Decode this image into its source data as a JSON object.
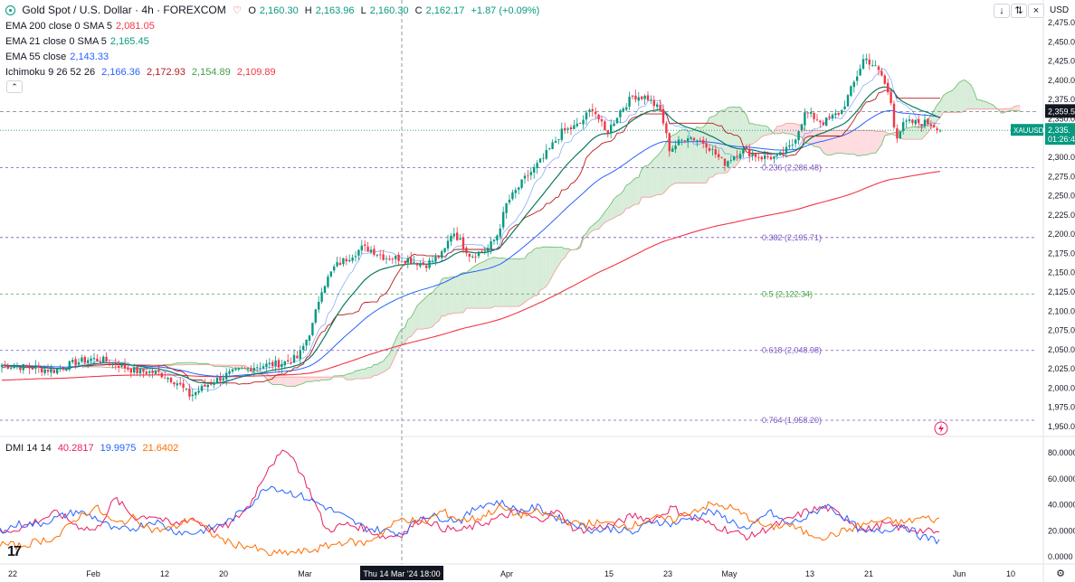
{
  "header": {
    "symbol": "Gold Spot / U.S. Dollar · 4h · FOREXCOM",
    "open_label": "O",
    "open": "2,160.30",
    "high_label": "H",
    "high": "2,163.96",
    "low_label": "L",
    "low": "2,160.30",
    "close_label": "C",
    "close": "2,162.17",
    "change": "+1.87 (+0.09%)",
    "currency": "USD"
  },
  "indicators": [
    {
      "label": "EMA 200 close 0 SMA 5",
      "value": "2,081.05",
      "color": "#f23645"
    },
    {
      "label": "EMA 21 close 0 SMA 5",
      "value": "2,165.45",
      "color": "#089981"
    },
    {
      "label": "EMA 55 close",
      "value": "2,143.33",
      "color": "#2962ff"
    },
    {
      "label": "Ichimoku 9 26 52 26",
      "values": [
        "2,166.36",
        "2,172.93",
        "2,154.89",
        "2,109.89"
      ],
      "colors": [
        "#2962ff",
        "#b71c1c",
        "#43a047",
        "#f23645"
      ]
    }
  ],
  "dmi": {
    "label": "DMI 14 14",
    "values": [
      "40.2817",
      "19.9975",
      "21.6402"
    ],
    "colors": [
      "#e91e63",
      "#2962ff",
      "#ff6d00"
    ]
  },
  "price_badges": {
    "resistance": "2,359.5",
    "last": "2,335.",
    "countdown": "01:26:4",
    "ticker": "XAUUSD"
  },
  "crosshair_label": "Thu 14 Mar '24   18:00",
  "colors": {
    "up": "#089981",
    "down": "#f23645",
    "ema200": "#f23645",
    "ema21": "#0b7a5f",
    "ema55": "#2962ff",
    "fib": "#7e57c2",
    "fib_mid": "#43a047",
    "cloud_bull": "#c8e6c9",
    "cloud_bear": "#ffcdd2"
  },
  "chart_data": [
    {
      "type": "candlestick",
      "title": "Gold Spot / U.S. Dollar · 4h · FOREXCOM",
      "ylim": [
        1940,
        2480
      ],
      "y_ticks": [
        "2,475.00",
        "2,450.00",
        "2,425.00",
        "2,400.00",
        "2,375.00",
        "2,350.00",
        "2,325.00",
        "2,300.00",
        "2,275.00",
        "2,250.00",
        "2,225.00",
        "2,200.00",
        "2,175.00",
        "2,150.00",
        "2,125.00",
        "2,100.00",
        "2,075.00",
        "2,050.00",
        "2,025.00",
        "2,000.00",
        "1,975.00",
        "1,950.00"
      ],
      "x_ticks": [
        "22",
        "Feb",
        "12",
        "20",
        "Mar",
        "Apr",
        "15",
        "23",
        "May",
        "13",
        "21",
        "Jun",
        "10"
      ],
      "close_anchors": [
        [
          0,
          2030
        ],
        [
          30,
          2027
        ],
        [
          60,
          2023
        ],
        [
          80,
          2032
        ],
        [
          100,
          2038
        ],
        [
          120,
          2035
        ],
        [
          150,
          2022
        ],
        [
          175,
          2020
        ],
        [
          195,
          2008
        ],
        [
          210,
          1990
        ],
        [
          230,
          2005
        ],
        [
          250,
          2017
        ],
        [
          280,
          2028
        ],
        [
          310,
          2032
        ],
        [
          330,
          2040
        ],
        [
          345,
          2080
        ],
        [
          355,
          2128
        ],
        [
          370,
          2158
        ],
        [
          385,
          2170
        ],
        [
          400,
          2182
        ],
        [
          410,
          2180
        ],
        [
          425,
          2170
        ],
        [
          450,
          2168
        ],
        [
          470,
          2160
        ],
        [
          490,
          2175
        ],
        [
          500,
          2205
        ],
        [
          520,
          2172
        ],
        [
          540,
          2182
        ],
        [
          550,
          2200
        ],
        [
          560,
          2240
        ],
        [
          580,
          2272
        ],
        [
          600,
          2298
        ],
        [
          620,
          2332
        ],
        [
          640,
          2342
        ],
        [
          655,
          2365
        ],
        [
          670,
          2330
        ],
        [
          685,
          2360
        ],
        [
          700,
          2380
        ],
        [
          715,
          2378
        ],
        [
          730,
          2360
        ],
        [
          740,
          2310
        ],
        [
          760,
          2328
        ],
        [
          780,
          2318
        ],
        [
          800,
          2292
        ],
        [
          820,
          2310
        ],
        [
          840,
          2300
        ],
        [
          860,
          2300
        ],
        [
          875,
          2315
        ],
        [
          890,
          2358
        ],
        [
          910,
          2345
        ],
        [
          930,
          2360
        ],
        [
          945,
          2400
        ],
        [
          955,
          2430
        ],
        [
          965,
          2420
        ],
        [
          975,
          2405
        ],
        [
          985,
          2370
        ],
        [
          990,
          2325
        ],
        [
          1000,
          2345
        ],
        [
          1015,
          2345
        ],
        [
          1025,
          2345
        ],
        [
          1035,
          2340
        ],
        [
          1040,
          2335
        ]
      ],
      "fibonacci": [
        {
          "level": "0.236",
          "price": 2286.48,
          "label": "0.236 (2,286.48)"
        },
        {
          "level": "0.382",
          "price": 2195.71,
          "label": "0.382 (2,195.71)"
        },
        {
          "level": "0.5",
          "price": 2122.34,
          "label": "0.5 (2,122.34)"
        },
        {
          "level": "0.618",
          "price": 2048.98,
          "label": "0.618 (2,048.98)"
        },
        {
          "level": "0.764",
          "price": 1958.2,
          "label": "0.764 (1,958.20)"
        }
      ],
      "horizontal_lines": [
        2359.5,
        2335.0
      ]
    },
    {
      "type": "line",
      "title": "DMI 14 14",
      "ylim": [
        0,
        90
      ],
      "y_ticks": [
        "80.0000",
        "60.0000",
        "40.0000",
        "20.0000",
        "0.0000"
      ],
      "series": [
        {
          "name": "+DI",
          "values": [
            18,
            22,
            28,
            34,
            24,
            20,
            45,
            30,
            32,
            24,
            30,
            20,
            25,
            40,
            70,
            83,
            55,
            20,
            25,
            22,
            15,
            18,
            30,
            22,
            20,
            25,
            30,
            35,
            28,
            35,
            20,
            22,
            25,
            32,
            28,
            38,
            30,
            25,
            20,
            15,
            22,
            28,
            35,
            38,
            30,
            20,
            25,
            22,
            20,
            18
          ]
        },
        {
          "name": "-DI",
          "values": [
            20,
            25,
            25,
            30,
            35,
            30,
            20,
            22,
            28,
            20,
            18,
            22,
            28,
            40,
            55,
            50,
            45,
            38,
            30,
            22,
            20,
            18,
            32,
            30,
            28,
            40,
            42,
            35,
            38,
            30,
            25,
            20,
            22,
            18,
            28,
            25,
            30,
            35,
            28,
            20,
            35,
            25,
            30,
            40,
            30,
            18,
            20,
            25,
            15,
            12
          ]
        },
        {
          "name": "ADX",
          "values": [
            10,
            8,
            12,
            15,
            30,
            38,
            25,
            30,
            20,
            22,
            30,
            18,
            10,
            8,
            2,
            3,
            4,
            8,
            12,
            10,
            20,
            30,
            25,
            35,
            28,
            30,
            38,
            32,
            34,
            30,
            25,
            26,
            25,
            24,
            30,
            28,
            35,
            40,
            38,
            30,
            22,
            25,
            18,
            15,
            20,
            25,
            28,
            26,
            30,
            28
          ]
        }
      ]
    }
  ]
}
